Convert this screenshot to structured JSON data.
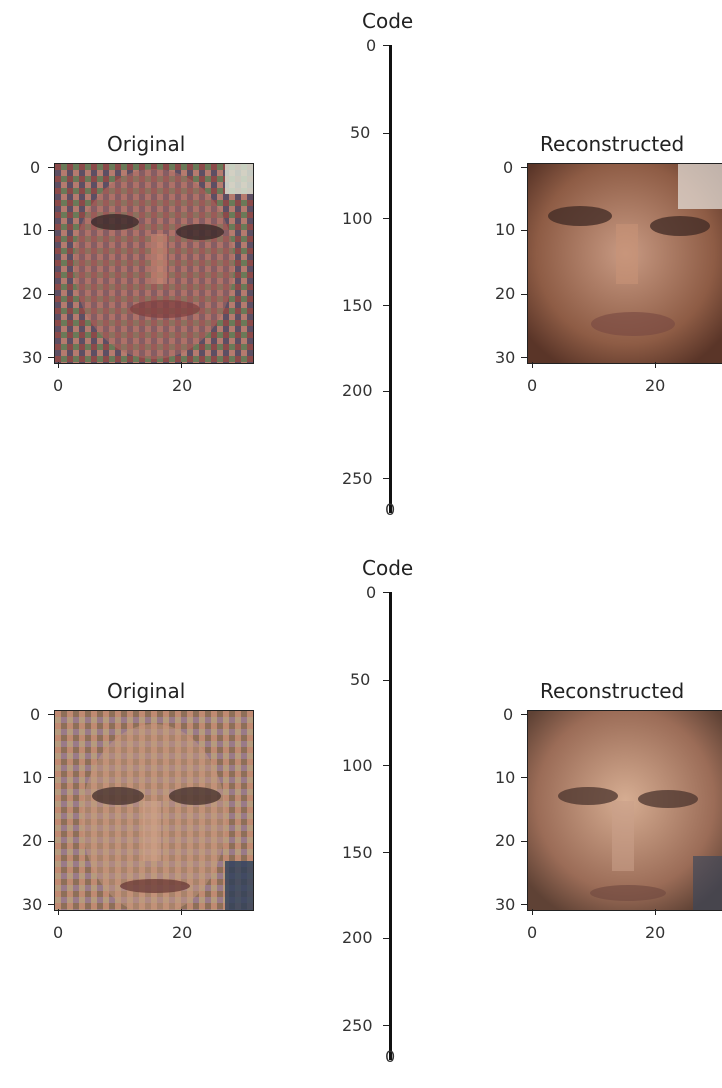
{
  "chart_data": [
    {
      "type": "image-grid",
      "row": 0,
      "panels": [
        {
          "title": "Original",
          "image": "noisy-face-1",
          "xticks": [
            "0",
            "20"
          ],
          "yticks": [
            "0",
            "10",
            "20",
            "30"
          ]
        },
        {
          "title": "Code",
          "yticks": [
            "0",
            "50",
            "100",
            "150",
            "200",
            "250"
          ],
          "xticks": [
            "0"
          ],
          "ylim": [
            0,
            256
          ],
          "xlim": [
            0,
            1
          ]
        },
        {
          "title": "Reconstructed",
          "image": "reconstructed-face-1",
          "xticks": [
            "0",
            "20"
          ],
          "yticks": [
            "0",
            "10",
            "20",
            "30"
          ]
        }
      ]
    },
    {
      "type": "image-grid",
      "row": 1,
      "panels": [
        {
          "title": "Original",
          "image": "noisy-face-2",
          "xticks": [
            "0",
            "20"
          ],
          "yticks": [
            "0",
            "10",
            "20",
            "30"
          ]
        },
        {
          "title": "Code",
          "yticks": [
            "0",
            "50",
            "100",
            "150",
            "200",
            "250"
          ],
          "xticks": [
            "0"
          ],
          "ylim": [
            0,
            256
          ],
          "xlim": [
            0,
            1
          ]
        },
        {
          "title": "Reconstructed",
          "image": "reconstructed-face-2",
          "xticks": [
            "0",
            "20"
          ],
          "yticks": [
            "0",
            "10",
            "20",
            "30"
          ]
        }
      ]
    }
  ]
}
